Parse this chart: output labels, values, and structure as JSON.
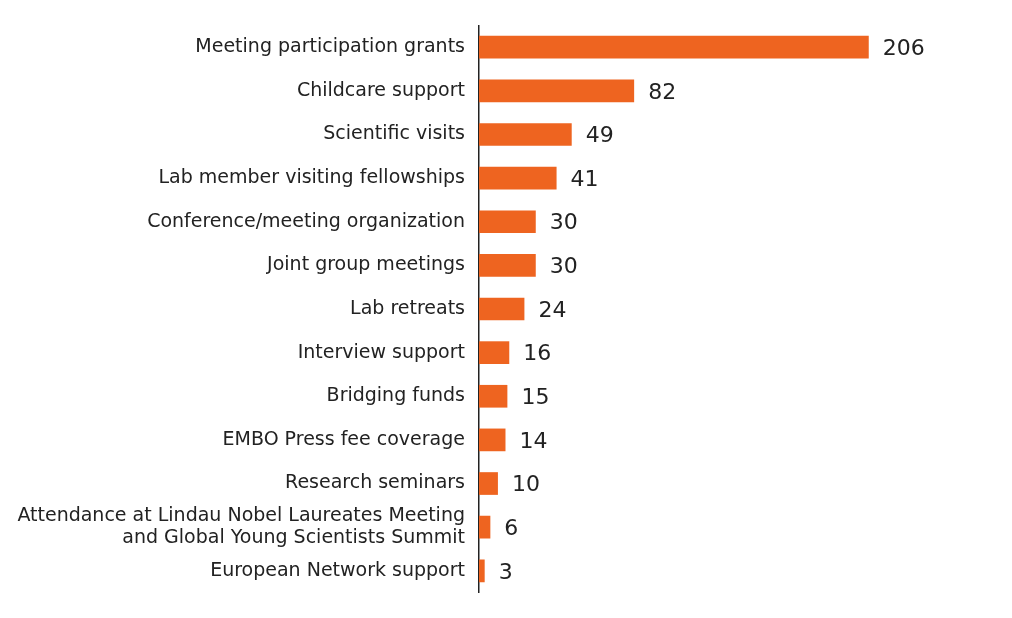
{
  "chart_data": {
    "type": "bar",
    "orientation": "horizontal",
    "tick_labels": "y",
    "grid": false,
    "legend": false,
    "data_labels": true,
    "categories": [
      "Meeting participation grants",
      "Childcare support",
      "Scientific visits",
      "Lab member visiting fellowships",
      "Conference/meeting organization",
      "Joint group meetings",
      "Lab retreats",
      "Interview support",
      "Bridging funds",
      "EMBO Press fee coverage",
      "Research seminars",
      "Attendance at Lindau Nobel Laureates Meeting\nand Global Young Scientists Summit",
      "European Network support"
    ],
    "values": [
      206,
      82,
      49,
      41,
      30,
      30,
      24,
      16,
      15,
      14,
      10,
      6,
      3
    ],
    "color": "#ee6420"
  }
}
